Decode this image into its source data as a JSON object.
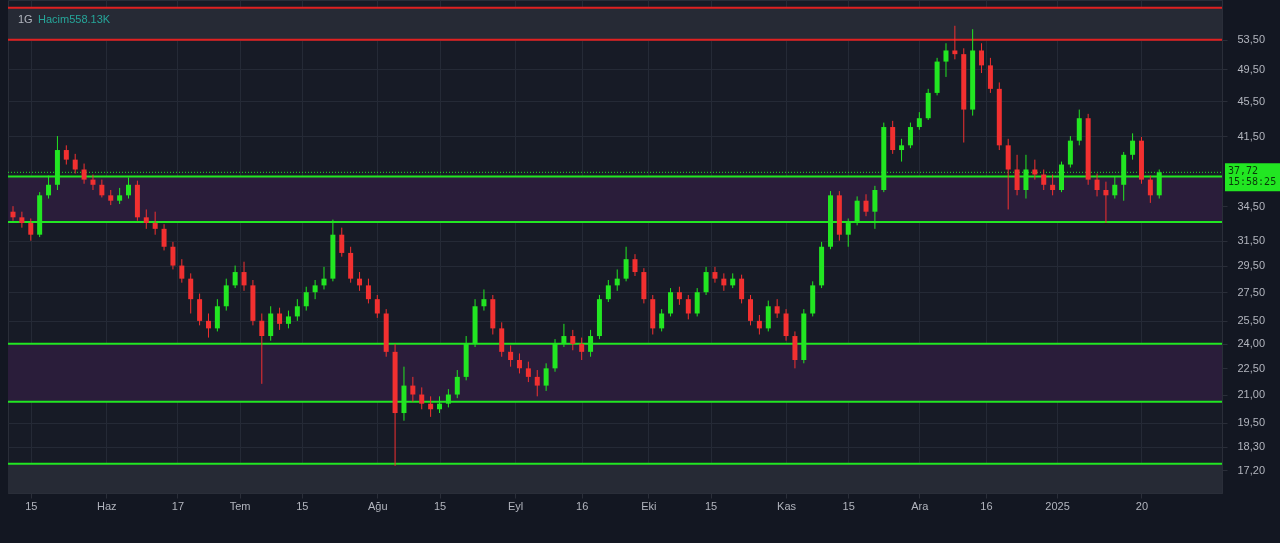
{
  "chart_data": {
    "type": "candlestick",
    "title": "1G",
    "annotations": [
      "Hacim558.13K",
      "15:58:25"
    ],
    "x": [
      "2024-05-11",
      "2024-05-13",
      "2024-05-15",
      "2024-05-17",
      "2024-05-19",
      "2024-05-21",
      "2024-05-23",
      "2024-05-25",
      "2024-05-27",
      "2024-05-29",
      "2024-05-31",
      "2024-06-02",
      "2024-06-04",
      "2024-06-06",
      "2024-06-08",
      "2024-06-10",
      "2024-06-12",
      "2024-06-14",
      "2024-06-16",
      "2024-06-18",
      "2024-06-20",
      "2024-06-22",
      "2024-06-24",
      "2024-06-26",
      "2024-06-28",
      "2024-06-30",
      "2024-07-02",
      "2024-07-04",
      "2024-07-06",
      "2024-07-08",
      "2024-07-10",
      "2024-07-12",
      "2024-07-14",
      "2024-07-16",
      "2024-07-18",
      "2024-07-20",
      "2024-07-22",
      "2024-07-24",
      "2024-07-26",
      "2024-07-28",
      "2024-07-30",
      "2024-08-01",
      "2024-08-03",
      "2024-08-05",
      "2024-08-07",
      "2024-08-09",
      "2024-08-11",
      "2024-08-13",
      "2024-08-15",
      "2024-08-17",
      "2024-08-19",
      "2024-08-21",
      "2024-08-23",
      "2024-08-25",
      "2024-08-27",
      "2024-08-29",
      "2024-08-31",
      "2024-09-02",
      "2024-09-04",
      "2024-09-06",
      "2024-09-08",
      "2024-09-10",
      "2024-09-12",
      "2024-09-14",
      "2024-09-16",
      "2024-09-18",
      "2024-09-20",
      "2024-09-22",
      "2024-09-24",
      "2024-09-26",
      "2024-09-28",
      "2024-09-30",
      "2024-10-02",
      "2024-10-04",
      "2024-10-06",
      "2024-10-08",
      "2024-10-10",
      "2024-10-12",
      "2024-10-14",
      "2024-10-16",
      "2024-10-18",
      "2024-10-20",
      "2024-10-22",
      "2024-10-24",
      "2024-10-26",
      "2024-10-28",
      "2024-10-30",
      "2024-11-01",
      "2024-11-03",
      "2024-11-05",
      "2024-11-07",
      "2024-11-09",
      "2024-11-11",
      "2024-11-13",
      "2024-11-15",
      "2024-11-17",
      "2024-11-19",
      "2024-11-21",
      "2024-11-23",
      "2024-11-25",
      "2024-11-27",
      "2024-11-29",
      "2024-12-01",
      "2024-12-03",
      "2024-12-05",
      "2024-12-07",
      "2024-12-09",
      "2024-12-11",
      "2024-12-13",
      "2024-12-15",
      "2024-12-17",
      "2024-12-19",
      "2024-12-21",
      "2024-12-23",
      "2024-12-25",
      "2024-12-27",
      "2024-12-29",
      "2024-12-31",
      "2025-01-02",
      "2025-01-04",
      "2025-01-06",
      "2025-01-08",
      "2025-01-10",
      "2025-01-12",
      "2025-01-14",
      "2025-01-16",
      "2025-01-18",
      "2025-01-20",
      "2025-01-22",
      "2025-01-24"
    ],
    "ohlc": [
      [
        34.0,
        34.5,
        33.2,
        33.5
      ],
      [
        33.5,
        34.0,
        32.6,
        33.0
      ],
      [
        33.0,
        33.4,
        31.5,
        32.0
      ],
      [
        32.0,
        35.8,
        31.8,
        35.5
      ],
      [
        35.5,
        37.4,
        35.2,
        36.5
      ],
      [
        36.5,
        41.5,
        36.0,
        40.0
      ],
      [
        40.0,
        40.5,
        38.5,
        39.0
      ],
      [
        39.0,
        39.6,
        37.6,
        38.0
      ],
      [
        38.0,
        38.6,
        36.6,
        37.0
      ],
      [
        37.0,
        37.5,
        36.0,
        36.5
      ],
      [
        36.5,
        37.0,
        35.3,
        35.5
      ],
      [
        35.5,
        36.0,
        34.6,
        35.0
      ],
      [
        35.0,
        36.2,
        34.7,
        35.5
      ],
      [
        35.5,
        37.2,
        35.2,
        36.5
      ],
      [
        36.5,
        36.9,
        33.2,
        33.5
      ],
      [
        33.5,
        34.2,
        32.5,
        33.0
      ],
      [
        33.0,
        34.0,
        32.0,
        32.5
      ],
      [
        32.5,
        32.9,
        30.7,
        31.0
      ],
      [
        31.0,
        31.4,
        29.2,
        29.5
      ],
      [
        29.5,
        30.0,
        28.2,
        28.5
      ],
      [
        28.5,
        28.9,
        26.0,
        27.0
      ],
      [
        27.0,
        27.4,
        25.2,
        25.5
      ],
      [
        25.5,
        26.0,
        24.4,
        25.0
      ],
      [
        25.0,
        27.0,
        24.8,
        26.5
      ],
      [
        26.5,
        28.5,
        26.2,
        28.0
      ],
      [
        28.0,
        29.5,
        27.8,
        29.0
      ],
      [
        29.0,
        29.8,
        27.6,
        28.0
      ],
      [
        28.0,
        28.4,
        25.2,
        25.5
      ],
      [
        25.5,
        26.0,
        21.6,
        24.5
      ],
      [
        24.5,
        26.5,
        24.2,
        26.0
      ],
      [
        26.0,
        26.4,
        24.9,
        25.3
      ],
      [
        25.3,
        26.2,
        25.0,
        25.8
      ],
      [
        25.8,
        27.0,
        25.5,
        26.5
      ],
      [
        26.5,
        27.9,
        26.2,
        27.5
      ],
      [
        27.5,
        28.4,
        27.0,
        28.0
      ],
      [
        28.0,
        29.4,
        27.7,
        28.5
      ],
      [
        28.5,
        33.3,
        28.3,
        32.0
      ],
      [
        32.0,
        32.6,
        30.2,
        30.5
      ],
      [
        30.5,
        31.0,
        28.2,
        28.5
      ],
      [
        28.5,
        29.0,
        27.6,
        28.0
      ],
      [
        28.0,
        28.5,
        26.7,
        27.0
      ],
      [
        27.0,
        27.3,
        25.7,
        26.0
      ],
      [
        26.0,
        26.3,
        23.2,
        23.5
      ],
      [
        23.5,
        24.0,
        17.4,
        20.0
      ],
      [
        20.0,
        22.6,
        19.6,
        21.5
      ],
      [
        21.5,
        22.0,
        20.6,
        21.0
      ],
      [
        21.0,
        21.4,
        20.2,
        20.5
      ],
      [
        20.5,
        20.9,
        19.8,
        20.2
      ],
      [
        20.2,
        20.9,
        20.0,
        20.5
      ],
      [
        20.5,
        21.3,
        20.3,
        21.0
      ],
      [
        21.0,
        22.4,
        20.8,
        22.0
      ],
      [
        22.0,
        24.5,
        21.8,
        24.0
      ],
      [
        24.0,
        27.0,
        23.8,
        26.5
      ],
      [
        26.5,
        27.7,
        26.2,
        27.0
      ],
      [
        27.0,
        27.3,
        24.6,
        25.0
      ],
      [
        25.0,
        25.4,
        23.2,
        23.5
      ],
      [
        23.5,
        23.9,
        22.6,
        23.0
      ],
      [
        23.0,
        23.4,
        22.2,
        22.5
      ],
      [
        22.5,
        22.9,
        21.7,
        22.0
      ],
      [
        22.0,
        22.4,
        20.9,
        21.5
      ],
      [
        21.5,
        22.8,
        21.2,
        22.5
      ],
      [
        22.5,
        24.3,
        22.3,
        24.0
      ],
      [
        24.0,
        25.3,
        23.8,
        24.5
      ],
      [
        24.5,
        24.9,
        23.6,
        24.0
      ],
      [
        24.0,
        24.4,
        23.0,
        23.5
      ],
      [
        23.5,
        24.9,
        23.2,
        24.5
      ],
      [
        24.5,
        27.3,
        24.3,
        27.0
      ],
      [
        27.0,
        28.4,
        26.8,
        28.0
      ],
      [
        28.0,
        29.2,
        27.6,
        28.5
      ],
      [
        28.5,
        31.0,
        28.3,
        30.0
      ],
      [
        30.0,
        30.4,
        28.7,
        29.0
      ],
      [
        29.0,
        29.3,
        26.7,
        27.0
      ],
      [
        27.0,
        27.3,
        24.6,
        25.0
      ],
      [
        25.0,
        26.3,
        24.8,
        26.0
      ],
      [
        26.0,
        27.8,
        25.8,
        27.5
      ],
      [
        27.5,
        27.9,
        26.6,
        27.0
      ],
      [
        27.0,
        27.3,
        25.6,
        26.0
      ],
      [
        26.0,
        27.8,
        25.8,
        27.5
      ],
      [
        27.5,
        29.4,
        27.3,
        29.0
      ],
      [
        29.0,
        29.4,
        28.2,
        28.5
      ],
      [
        28.5,
        28.9,
        27.6,
        28.0
      ],
      [
        28.0,
        28.9,
        27.8,
        28.5
      ],
      [
        28.5,
        28.8,
        26.7,
        27.0
      ],
      [
        27.0,
        27.3,
        25.2,
        25.5
      ],
      [
        25.5,
        25.9,
        24.6,
        25.0
      ],
      [
        25.0,
        26.9,
        24.8,
        26.5
      ],
      [
        26.5,
        27.0,
        25.7,
        26.0
      ],
      [
        26.0,
        26.3,
        24.2,
        24.5
      ],
      [
        24.5,
        24.8,
        22.5,
        23.0
      ],
      [
        23.0,
        26.3,
        22.8,
        26.0
      ],
      [
        26.0,
        28.3,
        25.8,
        28.0
      ],
      [
        28.0,
        31.4,
        27.8,
        31.0
      ],
      [
        31.0,
        35.9,
        30.8,
        35.5
      ],
      [
        35.5,
        35.9,
        31.5,
        32.0
      ],
      [
        32.0,
        33.4,
        31.0,
        33.0
      ],
      [
        33.0,
        35.4,
        32.8,
        35.0
      ],
      [
        35.0,
        35.6,
        33.6,
        34.0
      ],
      [
        34.0,
        36.4,
        32.5,
        36.0
      ],
      [
        36.0,
        43.0,
        35.8,
        42.5
      ],
      [
        42.5,
        43.2,
        39.6,
        40.0
      ],
      [
        40.0,
        41.2,
        38.8,
        40.5
      ],
      [
        40.5,
        43.0,
        40.2,
        42.5
      ],
      [
        42.5,
        44.2,
        42.2,
        43.5
      ],
      [
        43.5,
        47.0,
        43.3,
        46.5
      ],
      [
        46.5,
        51.0,
        46.2,
        50.5
      ],
      [
        50.5,
        53.0,
        48.5,
        52.0
      ],
      [
        52.0,
        55.5,
        50.8,
        51.5
      ],
      [
        51.5,
        52.3,
        40.8,
        44.5
      ],
      [
        44.5,
        55.0,
        43.8,
        52.0
      ],
      [
        52.0,
        53.0,
        49.0,
        50.0
      ],
      [
        50.0,
        51.0,
        46.5,
        47.0
      ],
      [
        47.0,
        47.8,
        40.0,
        40.5
      ],
      [
        40.5,
        41.2,
        34.2,
        38.0
      ],
      [
        38.0,
        39.5,
        35.5,
        36.0
      ],
      [
        36.0,
        39.5,
        35.2,
        38.0
      ],
      [
        38.0,
        39.0,
        37.0,
        37.5
      ],
      [
        37.5,
        38.0,
        36.0,
        36.5
      ],
      [
        36.5,
        37.5,
        35.5,
        36.0
      ],
      [
        36.0,
        38.8,
        35.8,
        38.5
      ],
      [
        38.5,
        41.5,
        38.2,
        41.0
      ],
      [
        41.0,
        44.5,
        40.5,
        43.5
      ],
      [
        43.5,
        44.0,
        36.5,
        37.0
      ],
      [
        37.0,
        37.6,
        35.4,
        36.0
      ],
      [
        36.0,
        36.8,
        33.0,
        35.5
      ],
      [
        35.5,
        37.3,
        35.2,
        36.5
      ],
      [
        36.5,
        39.8,
        35.0,
        39.5
      ],
      [
        39.5,
        41.8,
        39.0,
        41.0
      ],
      [
        41.0,
        41.4,
        36.6,
        37.0
      ],
      [
        37.0,
        37.4,
        34.8,
        35.5
      ],
      [
        35.5,
        38.0,
        35.2,
        37.72
      ]
    ],
    "colors": [
      "#f23030",
      "#f23030",
      "#f23030",
      "#22e622",
      "#22e622",
      "#22e622",
      "#f23030",
      "#f23030",
      "#f23030",
      "#f23030",
      "#f23030",
      "#f23030",
      "#22e622",
      "#22e622",
      "#f23030",
      "#f23030",
      "#f23030",
      "#f23030",
      "#f23030",
      "#f23030",
      "#f23030",
      "#f23030",
      "#f23030",
      "#22e622",
      "#22e622",
      "#22e622",
      "#f23030",
      "#f23030",
      "#f23030",
      "#22e622",
      "#f23030",
      "#22e622",
      "#22e622",
      "#22e622",
      "#22e622",
      "#22e622",
      "#22e622",
      "#f23030",
      "#f23030",
      "#f23030",
      "#f23030",
      "#f23030",
      "#f23030",
      "#f23030",
      "#22e622",
      "#f23030",
      "#f23030",
      "#f23030",
      "#22e622",
      "#22e622",
      "#22e622",
      "#22e622",
      "#22e622",
      "#22e622",
      "#f23030",
      "#f23030",
      "#f23030",
      "#f23030",
      "#f23030",
      "#f23030",
      "#22e622",
      "#22e622",
      "#22e622",
      "#f23030",
      "#f23030",
      "#22e622",
      "#22e622",
      "#22e622",
      "#22e622",
      "#22e622",
      "#f23030",
      "#f23030",
      "#f23030",
      "#22e622",
      "#22e622",
      "#f23030",
      "#f23030",
      "#22e622",
      "#22e622",
      "#f23030",
      "#f23030",
      "#22e622",
      "#f23030",
      "#f23030",
      "#f23030",
      "#22e622",
      "#f23030",
      "#f23030",
      "#f23030",
      "#22e622",
      "#22e622",
      "#22e622",
      "#22e622",
      "#f23030",
      "#22e622",
      "#22e622",
      "#f23030",
      "#22e622",
      "#22e622",
      "#f23030",
      "#22e622",
      "#22e622",
      "#22e622",
      "#22e622",
      "#22e622",
      "#22e622",
      "#f23030",
      "#f23030",
      "#22e622",
      "#f23030",
      "#f23030",
      "#f23030",
      "#f23030",
      "#f23030",
      "#22e622",
      "#f23030",
      "#f23030",
      "#f23030",
      "#22e622",
      "#22e622",
      "#22e622",
      "#f23030",
      "#f23030",
      "#f23030",
      "#22e622",
      "#22e622",
      "#22e622",
      "#f23030",
      "#f23030",
      "#22e622"
    ],
    "xlim": [
      "2024-05-11",
      "2025-02-06"
    ],
    "xticks": [
      {
        "value": "2024-05-15",
        "label": "15"
      },
      {
        "value": "2024-06-01",
        "label": "Haz"
      },
      {
        "value": "2024-06-17",
        "label": "17"
      },
      {
        "value": "2024-07-01",
        "label": "Tem"
      },
      {
        "value": "2024-07-15",
        "label": "15"
      },
      {
        "value": "2024-08-01",
        "label": "Ağu"
      },
      {
        "value": "2024-08-15",
        "label": "15"
      },
      {
        "value": "2024-09-01",
        "label": "Eyl"
      },
      {
        "value": "2024-09-16",
        "label": "16"
      },
      {
        "value": "2024-10-01",
        "label": "Eki"
      },
      {
        "value": "2024-10-15",
        "label": "15"
      },
      {
        "value": "2024-11-01",
        "label": "Kas"
      },
      {
        "value": "2024-11-15",
        "label": "15"
      },
      {
        "value": "2024-12-01",
        "label": "Ara"
      },
      {
        "value": "2024-12-16",
        "label": "16"
      },
      {
        "value": "2025-01-01",
        "label": "2025"
      },
      {
        "value": "2025-01-20",
        "label": "20"
      }
    ],
    "ylim": [
      16.2,
      59.4
    ],
    "yticks": [
      {
        "value": 17.2,
        "label": "17,20"
      },
      {
        "value": 18.3,
        "label": "18,30"
      },
      {
        "value": 19.5,
        "label": "19,50"
      },
      {
        "value": 21.0,
        "label": "21,00"
      },
      {
        "value": 22.5,
        "label": "22,50"
      },
      {
        "value": 24.0,
        "label": "24,00"
      },
      {
        "value": 25.5,
        "label": "25,50"
      },
      {
        "value": 27.5,
        "label": "27,50"
      },
      {
        "value": 29.5,
        "label": "29,50"
      },
      {
        "value": 31.5,
        "label": "31,50"
      },
      {
        "value": 34.5,
        "label": "34,50"
      },
      {
        "value": 41.5,
        "label": "41,50"
      },
      {
        "value": 45.5,
        "label": "45,50"
      },
      {
        "value": 49.5,
        "label": "49,50"
      },
      {
        "value": 53.5,
        "label": "53,50"
      }
    ],
    "log": true,
    "grid": true,
    "bands": [
      {
        "axis": "y",
        "from": 53.5,
        "to": 58.2,
        "color": "#262a35"
      },
      {
        "axis": "y",
        "from": 33.1,
        "to": 37.3,
        "color": "#2a1d3a"
      },
      {
        "axis": "y",
        "from": 20.6,
        "to": 24.0,
        "color": "#2a1d3a"
      },
      {
        "axis": "y",
        "from": 16.2,
        "to": 17.5,
        "color": "#262a35"
      }
    ],
    "ref_lines": [
      {
        "axis": "y",
        "value": 58.2,
        "color": "#e02020"
      },
      {
        "axis": "y",
        "value": 53.5,
        "color": "#e02020"
      },
      {
        "axis": "y",
        "value": 37.72,
        "label": "37,72",
        "color": "#22e622",
        "line_style": "dotted"
      },
      {
        "axis": "y",
        "value": 37.3,
        "color": "#22e622"
      },
      {
        "axis": "y",
        "value": 33.1,
        "color": "#22e622"
      },
      {
        "axis": "y",
        "value": 24.0,
        "color": "#22e622"
      },
      {
        "axis": "y",
        "value": 20.6,
        "color": "#22e622"
      },
      {
        "axis": "y",
        "value": 17.5,
        "color": "#22e622"
      }
    ]
  }
}
